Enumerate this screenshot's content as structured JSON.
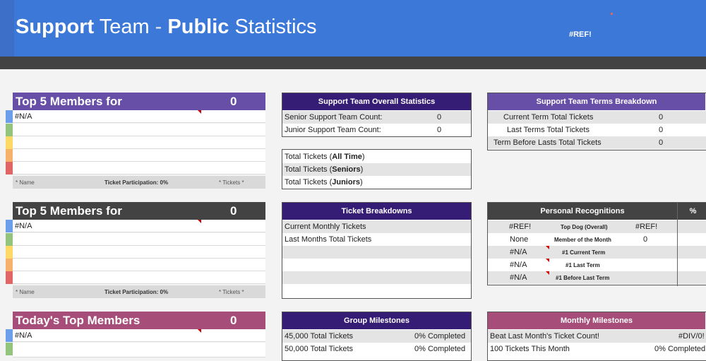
{
  "header": {
    "title_bold1": "Support",
    "title_reg1": " Team ",
    "title_dash": "-",
    "title_bold2": " Public",
    "title_reg2": " Statistics",
    "ref": "#REF!"
  },
  "leaderboards": [
    {
      "title": "Top 5 Members for",
      "count": "0",
      "first": "#N/A",
      "foot_name": "* Name",
      "foot_part": "Ticket Participation: 0%",
      "foot_tickets": "* Tickets *"
    },
    {
      "title": "Top 5 Members for",
      "count": "0",
      "first": "#N/A",
      "foot_name": "* Name",
      "foot_part": "Ticket Participation: 0%",
      "foot_tickets": "* Tickets *"
    },
    {
      "title": "Today's Top Members",
      "count": "0",
      "first": "#N/A"
    }
  ],
  "overall": {
    "title": "Support Team Overall Statistics",
    "rows": [
      {
        "label": "Senior Support Team Count:",
        "value": "0"
      },
      {
        "label": "Junior Support Team Count:",
        "value": "0"
      }
    ]
  },
  "totals": {
    "rows": [
      {
        "pre": "Total Tickets (",
        "bold": "All Time",
        "post": ")"
      },
      {
        "pre": "Total Tickets (",
        "bold": "Seniors",
        "post": ")"
      },
      {
        "pre": "Total Tickets (",
        "bold": "Juniors",
        "post": ")"
      }
    ]
  },
  "terms": {
    "title": "Support Team Terms Breakdown",
    "rows": [
      {
        "label": "Current Term Total Tickets",
        "value": "0"
      },
      {
        "label": "Last Terms Total Tickets",
        "value": "0"
      },
      {
        "label": "Term Before Lasts Total Tickets",
        "value": "0"
      }
    ]
  },
  "breakdowns": {
    "title": "Ticket Breakdowns",
    "rows": [
      "Current Monthly Tickets",
      "Last Months Total Tickets"
    ]
  },
  "recognitions": {
    "title": "Personal Recognitions",
    "pct": "%",
    "rows": [
      {
        "left": "#REF!",
        "mid": "Top Dog (Overall)",
        "right": "#REF!"
      },
      {
        "left": "None",
        "mid": "Member of the Month",
        "right": "0"
      },
      {
        "left": "#N/A",
        "mid": "#1 Current Term",
        "right": ""
      },
      {
        "left": "#N/A",
        "mid": "#1 Last Term",
        "right": ""
      },
      {
        "left": "#N/A",
        "mid": "#1 Before Last Term",
        "right": ""
      }
    ]
  },
  "group_milestones": {
    "title": "Group Milestones",
    "rows": [
      {
        "label": "45,000 Total Tickets",
        "value": "0% Completed"
      },
      {
        "label": "50,000 Total Tickets",
        "value": "0% Completed"
      }
    ]
  },
  "monthly_milestones": {
    "title": "Monthly Milestones",
    "rows": [
      {
        "label": "Beat Last Month's Ticket Count!",
        "value": "#DIV/0!"
      },
      {
        "label": "100 Tickets This Month",
        "value": "0% Completed"
      }
    ]
  },
  "colors": {
    "header_blue": "#3c78d8",
    "lb1": "#674ea7",
    "lb2": "#434343",
    "lb3": "#a64d79",
    "box_purple": "#351c75",
    "terms_purple": "#674ea7",
    "monthly_pink": "#a64d79",
    "stripes": [
      "#6d9eeb",
      "#93c47d",
      "#ffd966",
      "#f6b26b",
      "#e06666"
    ]
  }
}
